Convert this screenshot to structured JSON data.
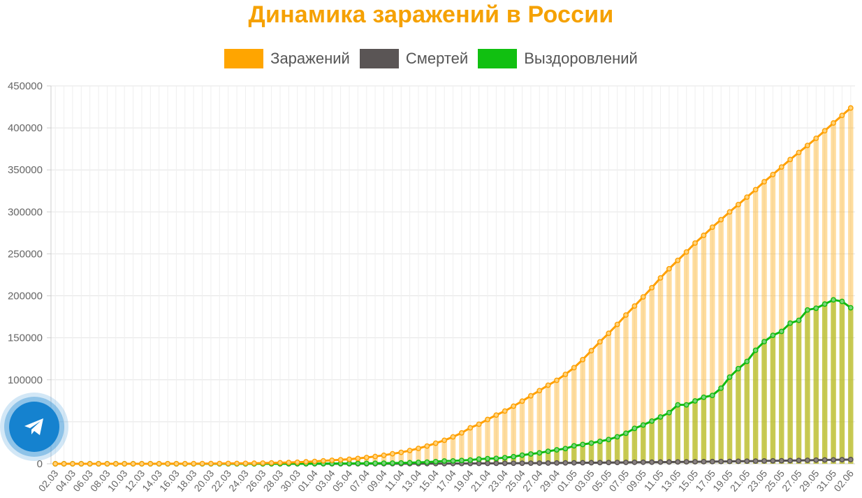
{
  "title": "Динамика заражений в России",
  "legend": [
    {
      "label": "Заражений",
      "color": "#ffa500"
    },
    {
      "label": "Смертей",
      "color": "#5a5555"
    },
    {
      "label": "Выздоровлений",
      "color": "#11c011"
    }
  ],
  "telegram_button": {
    "icon": "telegram-icon"
  },
  "chart_data": {
    "type": "bar+line",
    "title": "Динамика заражений в России",
    "ylim": [
      0,
      450000
    ],
    "y_ticks": [
      0,
      50000,
      100000,
      150000,
      200000,
      250000,
      300000,
      350000,
      400000,
      450000
    ],
    "grid": true,
    "legend_position": "top",
    "x_tick_labels": [
      "02.03",
      "04.03",
      "06.03",
      "08.03",
      "10.03",
      "12.03",
      "14.03",
      "16.03",
      "18.03",
      "20.03",
      "22.03",
      "24.03",
      "26.03",
      "28.03",
      "30.03",
      "01.04",
      "03.04",
      "05.04",
      "07.04",
      "09.04",
      "11.04",
      "13.04",
      "15.04",
      "17.04",
      "19.04",
      "21.04",
      "23.04",
      "25.04",
      "27.04",
      "29.04",
      "01.05",
      "03.05",
      "05.05",
      "07.05",
      "09.05",
      "11.05",
      "13.05",
      "15.05",
      "17.05",
      "19.05",
      "21.05",
      "23.05",
      "25.05",
      "27.05",
      "29.05",
      "31.05",
      "02.06"
    ],
    "categories": [
      "02.03",
      "03.03",
      "04.03",
      "05.03",
      "06.03",
      "07.03",
      "08.03",
      "09.03",
      "10.03",
      "11.03",
      "12.03",
      "13.03",
      "14.03",
      "15.03",
      "16.03",
      "17.03",
      "18.03",
      "19.03",
      "20.03",
      "21.03",
      "22.03",
      "23.03",
      "24.03",
      "25.03",
      "26.03",
      "27.03",
      "28.03",
      "29.03",
      "30.03",
      "31.03",
      "01.04",
      "02.04",
      "03.04",
      "04.04",
      "05.04",
      "06.04",
      "07.04",
      "08.04",
      "09.04",
      "10.04",
      "11.04",
      "12.04",
      "13.04",
      "14.04",
      "15.04",
      "16.04",
      "17.04",
      "18.04",
      "19.04",
      "20.04",
      "21.04",
      "22.04",
      "23.04",
      "24.04",
      "25.04",
      "26.04",
      "27.04",
      "28.04",
      "29.04",
      "30.04",
      "01.05",
      "02.05",
      "03.05",
      "04.05",
      "05.05",
      "06.05",
      "07.05",
      "08.05",
      "09.05",
      "10.05",
      "11.05",
      "12.05",
      "13.05",
      "14.05",
      "15.05",
      "16.05",
      "17.05",
      "18.05",
      "19.05",
      "20.05",
      "21.05",
      "22.05",
      "23.05",
      "24.05",
      "25.05",
      "26.05",
      "27.05",
      "28.05",
      "29.05",
      "30.05",
      "31.05",
      "01.06",
      "02.06"
    ],
    "series": [
      {
        "name": "Заражений",
        "color": "#ffa500",
        "values": [
          3,
          3,
          3,
          4,
          4,
          10,
          13,
          17,
          20,
          28,
          34,
          45,
          59,
          63,
          90,
          114,
          147,
          199,
          253,
          306,
          367,
          438,
          495,
          658,
          840,
          1036,
          1264,
          1534,
          1836,
          2337,
          2777,
          3548,
          4149,
          4731,
          5389,
          6343,
          7497,
          8672,
          10131,
          11917,
          13584,
          15770,
          18328,
          21102,
          24490,
          27938,
          32008,
          36793,
          42853,
          47121,
          52763,
          57999,
          62773,
          68622,
          74588,
          80949,
          87147,
          93558,
          99399,
          106498,
          114431,
          124054,
          134686,
          145268,
          155370,
          165929,
          177160,
          187859,
          198676,
          209688,
          221344,
          232243,
          242271,
          252245,
          262843,
          272043,
          281752,
          290678,
          299941,
          308705,
          317554,
          326448,
          335882,
          344481,
          353427,
          362342,
          370680,
          379051,
          387623,
          396575,
          405843,
          414878,
          423741
        ]
      },
      {
        "name": "Смертей",
        "color": "#5a5555",
        "values": [
          0,
          0,
          0,
          0,
          0,
          0,
          0,
          0,
          0,
          0,
          0,
          0,
          0,
          0,
          0,
          0,
          0,
          1,
          1,
          1,
          1,
          1,
          1,
          3,
          3,
          4,
          4,
          8,
          9,
          17,
          24,
          30,
          34,
          43,
          45,
          47,
          58,
          63,
          76,
          94,
          106,
          130,
          148,
          170,
          198,
          232,
          273,
          313,
          361,
          405,
          456,
          513,
          555,
          615,
          681,
          747,
          794,
          867,
          972,
          1073,
          1169,
          1222,
          1280,
          1356,
          1451,
          1537,
          1625,
          1723,
          1827,
          1915,
          2009,
          2116,
          2212,
          2305,
          2418,
          2537,
          2631,
          2722,
          2837,
          2972,
          3099,
          3249,
          3388,
          3541,
          3633,
          3807,
          3968,
          4142,
          4374,
          4555,
          4693,
          4855,
          5037
        ]
      },
      {
        "name": "Выздоровлений",
        "color": "#11c011",
        "values": [
          0,
          0,
          0,
          0,
          0,
          0,
          0,
          0,
          0,
          0,
          0,
          0,
          0,
          0,
          1,
          1,
          2,
          3,
          4,
          9,
          9,
          16,
          16,
          22,
          38,
          45,
          49,
          64,
          66,
          121,
          190,
          235,
          281,
          333,
          355,
          406,
          494,
          580,
          698,
          850,
          1045,
          1291,
          1694,
          1986,
          2590,
          3291,
          3446,
          3929,
          4435,
          5568,
          6139,
          6397,
          7256,
          8456,
          10286,
          11619,
          12960,
          14877,
          16597,
          18095,
          21382,
          22937,
          24635,
          26736,
          28869,
          32132,
          36327,
          42165,
          46153,
          50859,
          55693,
          60896,
          70209,
          70209,
          74847,
          79234,
          81437,
          90011,
          103195,
          113281,
          121843,
          135181,
          145468,
          152960,
          157600,
          167473,
          170813,
          183233,
          185232,
          190201,
          195218,
          193340,
          185826
        ]
      }
    ]
  }
}
